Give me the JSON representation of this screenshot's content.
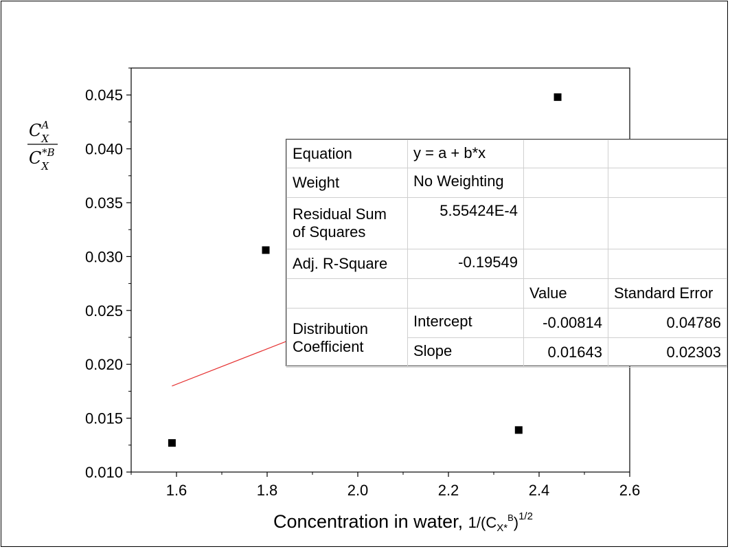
{
  "chart_data": {
    "type": "scatter",
    "title": "",
    "xlabel": "Concentration in water, ",
    "xlabel_math": {
      "prefix": "1/(C",
      "sub": "X*",
      "sup_inner": "B",
      "suffix": ")",
      "sup_outer": "1/2"
    },
    "ylabel": {
      "numerator": {
        "base": "C",
        "sub": "X",
        "sup": "A"
      },
      "denominator": {
        "base": "C",
        "sub": "X",
        "sup": "*B"
      }
    },
    "xlim": [
      1.5,
      2.6
    ],
    "ylim": [
      0.01,
      0.0475
    ],
    "xticks": [
      1.6,
      1.8,
      2.0,
      2.2,
      2.4,
      2.6
    ],
    "xtick_labels": [
      "1.6",
      "1.8",
      "2.0",
      "2.2",
      "2.4",
      "2.6"
    ],
    "yticks": [
      0.01,
      0.015,
      0.02,
      0.025,
      0.03,
      0.035,
      0.04,
      0.045
    ],
    "ytick_labels": [
      "0.010",
      "0.015",
      "0.020",
      "0.025",
      "0.030",
      "0.035",
      "0.040",
      "0.045"
    ],
    "series": [
      {
        "marker": "square",
        "color": "#000000",
        "points": [
          {
            "x": 1.59,
            "y": 0.0127
          },
          {
            "x": 1.797,
            "y": 0.0306
          },
          {
            "x": 2.355,
            "y": 0.0139
          },
          {
            "x": 2.441,
            "y": 0.0448
          }
        ]
      }
    ],
    "fit_line": {
      "color": "#e53030",
      "intercept": -0.00814,
      "slope": 0.01643,
      "x_range": [
        1.59,
        2.441
      ]
    },
    "grid": false,
    "fit_table": {
      "rows": [
        {
          "label": "Equation",
          "value": "y = a + b*x"
        },
        {
          "label": "Weight",
          "value": "No Weighting"
        },
        {
          "label": "Residual Sum of Squares",
          "value": "5.55424E-4"
        },
        {
          "label": "Adj. R-Square",
          "value": "-0.19549"
        }
      ],
      "header": {
        "value": "Value",
        "std_error": "Standard Error"
      },
      "group_label": "Distribution Coefficient",
      "params": [
        {
          "name": "Intercept",
          "value": "-0.00814",
          "std_error": "0.04786"
        },
        {
          "name": "Slope",
          "value": "0.01643",
          "std_error": "0.02303"
        }
      ]
    }
  }
}
